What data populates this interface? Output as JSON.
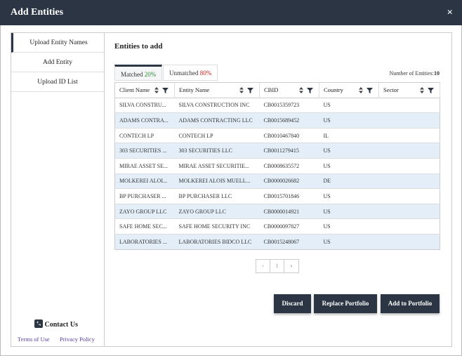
{
  "header": {
    "title": "Add Entities",
    "close": "×"
  },
  "sidebar": {
    "items": [
      "Upload Entity Names",
      "Add Entity",
      "Upload ID List"
    ],
    "contact": "Contact Us",
    "links": [
      "Terms of Use",
      "Privacy Policy"
    ]
  },
  "main": {
    "title": "Entities to add",
    "tabs": [
      {
        "label": "Matched",
        "percent": "20%"
      },
      {
        "label": "Unmatched",
        "percent": "80%"
      }
    ],
    "count_label": "Number of Entities:",
    "count": 10,
    "table": {
      "columns": [
        "Client Name",
        "Entity Name",
        "CBID",
        "Country",
        "Sector"
      ],
      "rows": [
        [
          "SILVA CONSTRU...",
          "SILVA CONSTRUCTION INC",
          "CB0015359723",
          "US"
        ],
        [
          "ADAMS CONTRA...",
          "ADAMS CONTRACTING LLC",
          "CB0015689452",
          "US"
        ],
        [
          "CONTECH LP",
          "CONTECH LP",
          "CB0010467840",
          "IL"
        ],
        [
          "303 SECURITIES ...",
          "303 SECURITIES LLC",
          "CB0011279415",
          "US"
        ],
        [
          "MIRAE ASSET SE...",
          "MIRAE ASSET SECURITIE...",
          "CB0008635572",
          "US"
        ],
        [
          "MOLKEREI ALOI...",
          "MOLKEREI ALOIS MUELL...",
          "CB0000026682",
          "DE"
        ],
        [
          "BP PURCHASER ...",
          "BP PURCHASER LLC",
          "CB0015701846",
          "US"
        ],
        [
          "ZAYO GROUP LLC",
          "ZAYO GROUP LLC",
          "CB0000014921",
          "US"
        ],
        [
          "SAFE HOME SEC...",
          "SAFE HOME SECURITY INC",
          "CB0000097827",
          "US"
        ],
        [
          "LABORATORIES ...",
          "LABORATORIES BIDCO LLC",
          "CB0015248067",
          "US"
        ]
      ]
    },
    "pagination": {
      "page": 1
    },
    "buttons": [
      "Discard",
      "Replace Portfolio",
      "Add to Portfolio"
    ]
  }
}
